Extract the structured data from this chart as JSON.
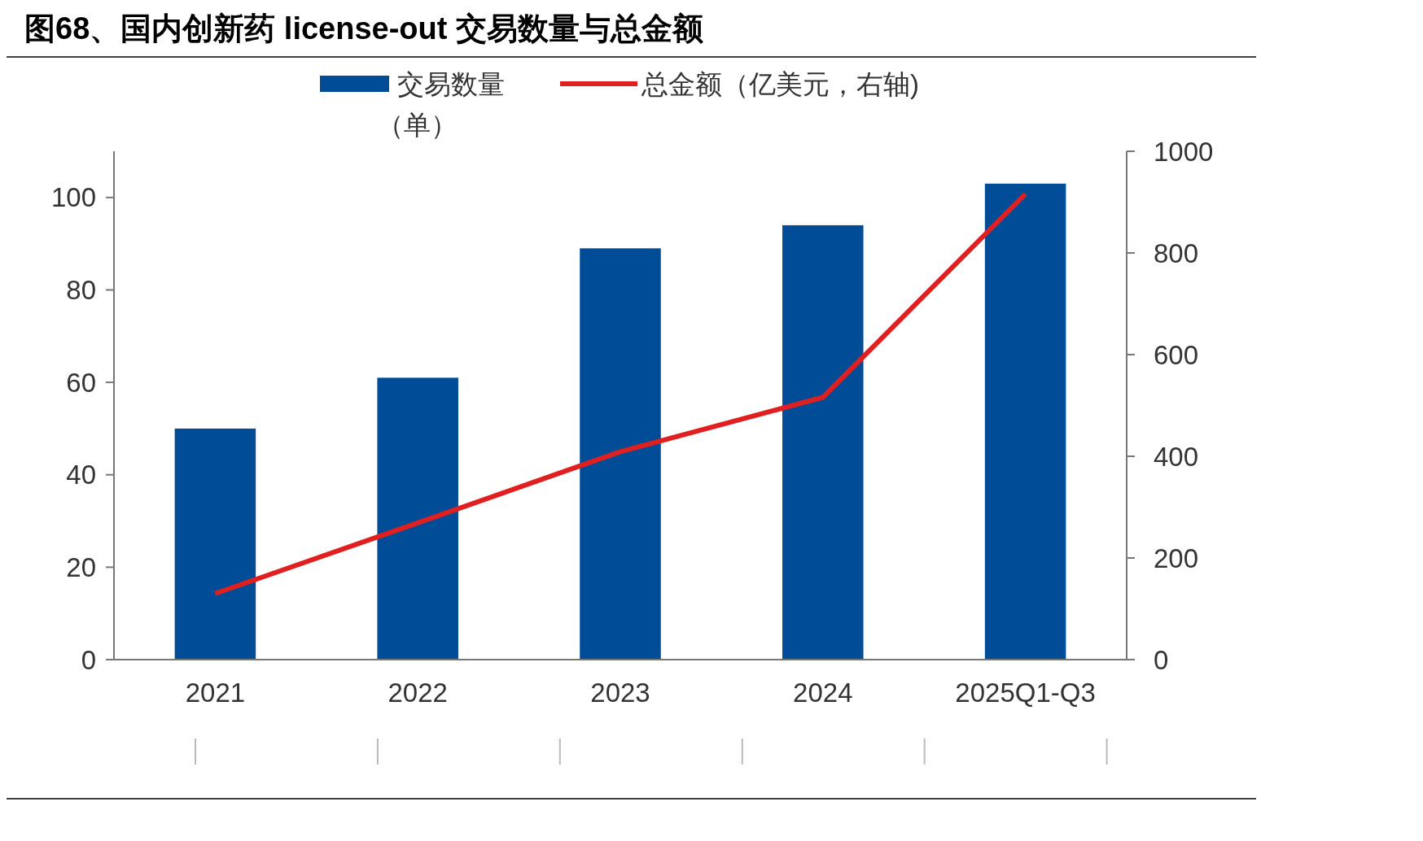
{
  "chart_data": {
    "type": "bar",
    "title": "图68、国内创新药 license-out 交易数量与总金额",
    "categories": [
      "2021",
      "2022",
      "2023",
      "2024",
      "2025Q1-Q3"
    ],
    "series": [
      {
        "name": "交易数量（单）",
        "color": "#004c97",
        "values": [
          50,
          61,
          89,
          94,
          103
        ]
      },
      {
        "name": "总金额（亿美元，右轴)",
        "type": "line",
        "axis": "y2",
        "color": "#e02020",
        "values": [
          130,
          269,
          409,
          516,
          916
        ]
      }
    ],
    "ylim": [
      0,
      110
    ],
    "yticks": [
      0,
      20,
      40,
      60,
      80,
      100
    ],
    "y2lim": [
      0,
      1000
    ],
    "y2ticks": [
      0,
      200,
      400,
      600,
      800,
      1000
    ],
    "legend": "top",
    "grid": false,
    "marker": "none",
    "line_style": "solid"
  }
}
